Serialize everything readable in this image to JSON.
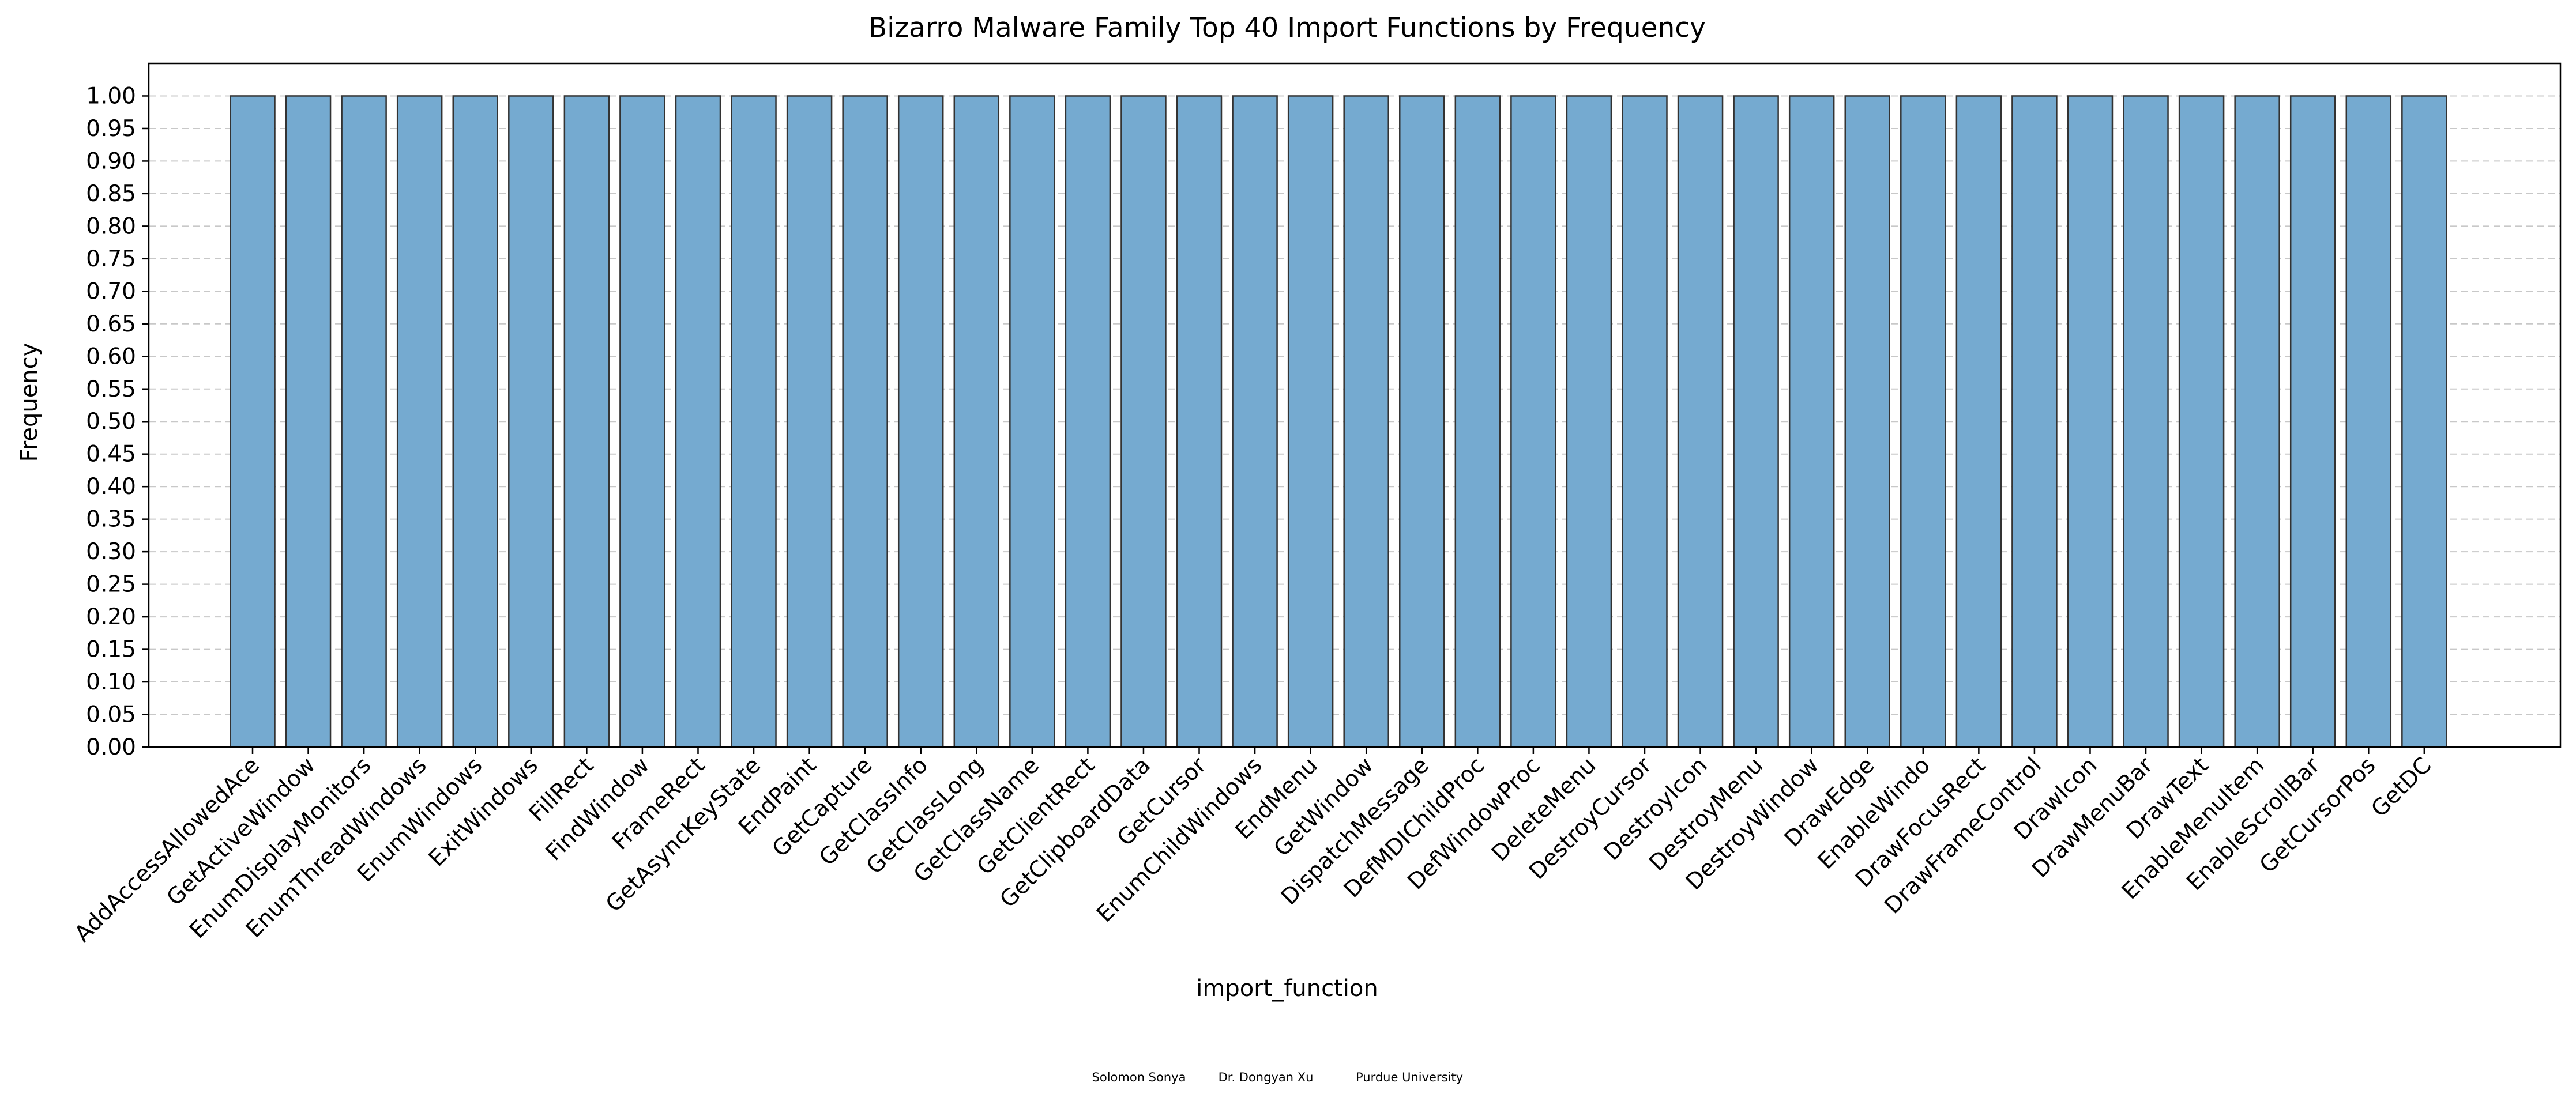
{
  "chart_data": {
    "type": "bar",
    "title": "Bizarro Malware Family Top 40 Import Functions by Frequency",
    "xlabel": "import_function",
    "ylabel": "Frequency",
    "ylim": [
      0,
      1.05
    ],
    "yticks": [
      0.0,
      0.05,
      0.1,
      0.15,
      0.2,
      0.25,
      0.3,
      0.35,
      0.4,
      0.45,
      0.5,
      0.55,
      0.6,
      0.65,
      0.7,
      0.75,
      0.8,
      0.85,
      0.9,
      0.95,
      1.0
    ],
    "grid": "horizontal dashed",
    "bar_color": "#75aad0",
    "bar_edge_color": "#333333",
    "categories": [
      "AddAccessAllowedAce",
      "GetActiveWindow",
      "EnumDisplayMonitors",
      "EnumThreadWindows",
      "EnumWindows",
      "ExitWindows",
      "FillRect",
      "FindWindow",
      "FrameRect",
      "GetAsyncKeyState",
      "EndPaint",
      "GetCapture",
      "GetClassInfo",
      "GetClassLong",
      "GetClassName",
      "GetClientRect",
      "GetClipboardData",
      "GetCursor",
      "EnumChildWindows",
      "EndMenu",
      "GetWindow",
      "DispatchMessage",
      "DefMDIChildProc",
      "DefWindowProc",
      "DeleteMenu",
      "DestroyCursor",
      "DestroyIcon",
      "DestroyMenu",
      "DestroyWindow",
      "DrawEdge",
      "EnableWindo",
      "DrawFocusRect",
      "DrawFrameControl",
      "DrawIcon",
      "DrawMenuBar",
      "DrawText",
      "EnableMenuItem",
      "EnableScrollBar",
      "GetCursorPos",
      "GetDC"
    ],
    "values": [
      1,
      1,
      1,
      1,
      1,
      1,
      1,
      1,
      1,
      1,
      1,
      1,
      1,
      1,
      1,
      1,
      1,
      1,
      1,
      1,
      1,
      1,
      1,
      1,
      1,
      1,
      1,
      1,
      1,
      1,
      1,
      1,
      1,
      1,
      1,
      1,
      1,
      1,
      1,
      1
    ]
  },
  "footer": {
    "author1": "Solomon Sonya",
    "author2": "Dr. Dongyan Xu",
    "affiliation": "Purdue University"
  }
}
